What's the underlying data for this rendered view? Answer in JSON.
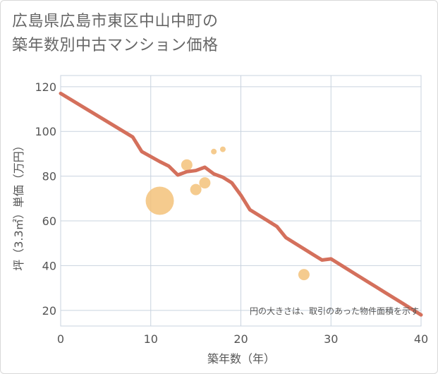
{
  "title_lines": [
    "広島県広島市東区中山中町の",
    "築年数別中古マンション価格"
  ],
  "chart_data": {
    "type": "scatter",
    "xlabel": "築年数（年）",
    "ylabel": "坪（3.3㎡）単価（万円）",
    "xlim": [
      0,
      40
    ],
    "ylim": [
      13,
      125
    ],
    "xticks": [
      0,
      10,
      20,
      30,
      40
    ],
    "yticks": [
      20,
      40,
      60,
      80,
      100,
      120
    ],
    "grid": true,
    "annotation": "円の大きさは、取引のあった物件面積を示す",
    "colors": {
      "line": "#d4705c",
      "bubble": "#f3c27a",
      "grid": "#c9d3df",
      "text": "#555555"
    },
    "trend_line": {
      "x": [
        0,
        8,
        9,
        11,
        12,
        13,
        14,
        15,
        16,
        17,
        18,
        19,
        20,
        21,
        22,
        23,
        24,
        25,
        26,
        27,
        28,
        29,
        30,
        31,
        32,
        33,
        34,
        35,
        36,
        37,
        38,
        39,
        40
      ],
      "y": [
        117,
        97.5,
        91,
        86.5,
        84.5,
        80.5,
        82,
        82.5,
        84,
        81,
        79.5,
        77,
        71.5,
        65,
        62.5,
        60,
        57.5,
        52.5,
        50,
        47.5,
        45,
        42.5,
        43,
        40.5,
        38,
        35.5,
        33,
        30.5,
        28,
        25.5,
        23,
        20.5,
        18
      ]
    },
    "points": [
      {
        "x": 11,
        "y": 69,
        "size": 20
      },
      {
        "x": 14,
        "y": 85,
        "size": 8
      },
      {
        "x": 15,
        "y": 74,
        "size": 8
      },
      {
        "x": 16,
        "y": 77,
        "size": 8
      },
      {
        "x": 17,
        "y": 91,
        "size": 4
      },
      {
        "x": 18,
        "y": 92,
        "size": 4
      },
      {
        "x": 27,
        "y": 36,
        "size": 8
      }
    ]
  }
}
